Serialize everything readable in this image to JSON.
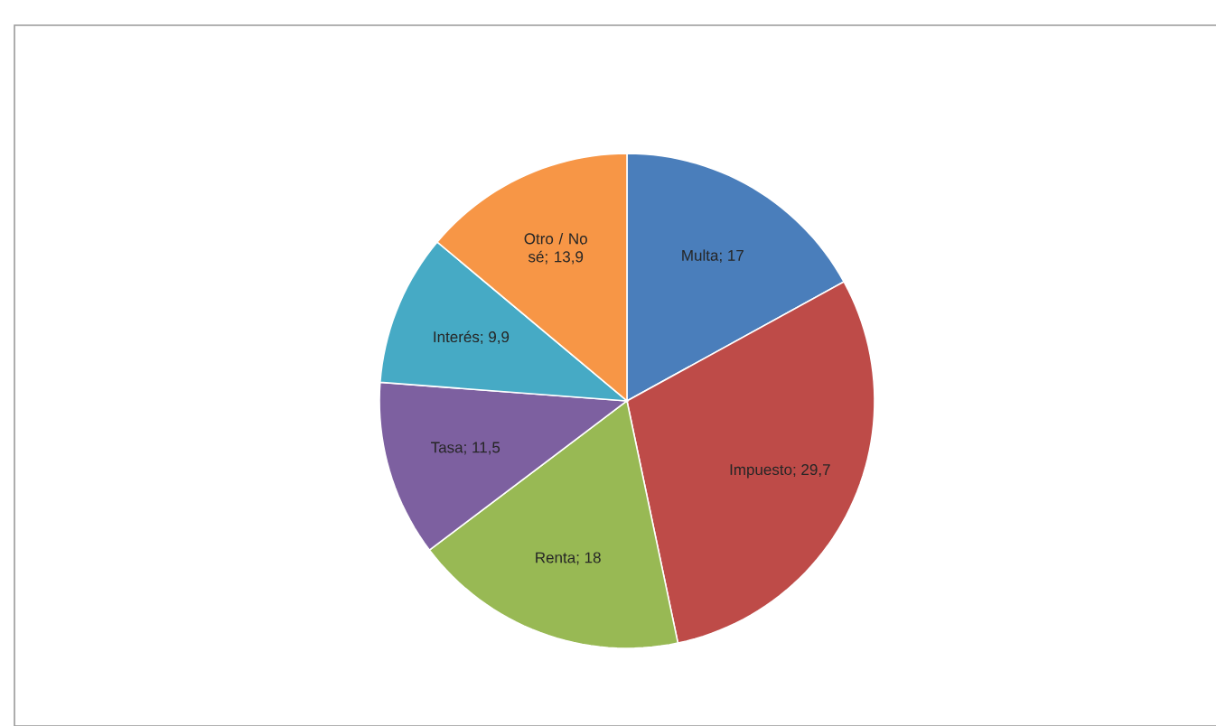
{
  "chart_data": {
    "type": "pie",
    "categories": [
      "Multa",
      "Impuesto",
      "Renta",
      "Tasa",
      "Interés",
      "Otro / No sé"
    ],
    "values": [
      17,
      29.7,
      18,
      11.5,
      9.9,
      13.9
    ],
    "value_labels": [
      "; 17",
      "; 29,7",
      "; 18",
      "; 11,5",
      "; 9,9",
      "; 13,9"
    ],
    "colors": [
      "#4a7ebb",
      "#be4b48",
      "#98b954",
      "#7d60a0",
      "#46aac5",
      "#f79646"
    ],
    "legend": false
  }
}
